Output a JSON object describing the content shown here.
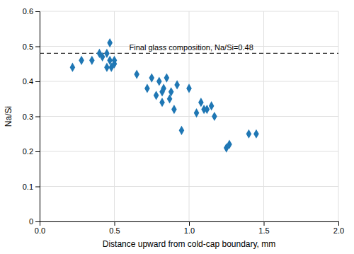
{
  "chart_data": {
    "type": "scatter",
    "x_label": "Distance upward from cold-cap boundary,  mm",
    "y_label": "Na/Si",
    "x": [
      0.22,
      0.28,
      0.35,
      0.4,
      0.42,
      0.45,
      0.45,
      0.47,
      0.47,
      0.48,
      0.5,
      0.5,
      0.65,
      0.72,
      0.75,
      0.78,
      0.8,
      0.82,
      0.82,
      0.83,
      0.85,
      0.87,
      0.88,
      0.9,
      0.92,
      0.95,
      1.0,
      1.05,
      1.08,
      1.1,
      1.12,
      1.15,
      1.17,
      1.25,
      1.27,
      1.4,
      1.45
    ],
    "values": [
      0.44,
      0.46,
      0.46,
      0.48,
      0.47,
      0.48,
      0.44,
      0.46,
      0.51,
      0.44,
      0.46,
      0.45,
      0.42,
      0.38,
      0.41,
      0.36,
      0.4,
      0.34,
      0.37,
      0.38,
      0.41,
      0.35,
      0.37,
      0.32,
      0.39,
      0.26,
      0.38,
      0.31,
      0.34,
      0.32,
      0.32,
      0.33,
      0.3,
      0.21,
      0.22,
      0.25,
      0.25
    ],
    "marker": "diamond",
    "xlim": [
      0.0,
      2.0
    ],
    "ylim": [
      0,
      0.6
    ],
    "xticks": [
      {
        "value": 0.0,
        "label": "0.0"
      },
      0.5,
      {
        "value": 1.0,
        "label": "1.0"
      },
      1.5,
      {
        "value": 2.0,
        "label": "2.0"
      }
    ],
    "yticks": [
      0,
      0.1,
      0.2,
      0.3,
      0.4,
      0.5,
      0.6
    ],
    "grid": true,
    "reference_line": {
      "y": 0.48,
      "line_style": "dashed"
    },
    "annotations": [
      {
        "text": "Final glass composition, Na/Si=0.48",
        "x": 0.6,
        "y": 0.48
      }
    ]
  }
}
